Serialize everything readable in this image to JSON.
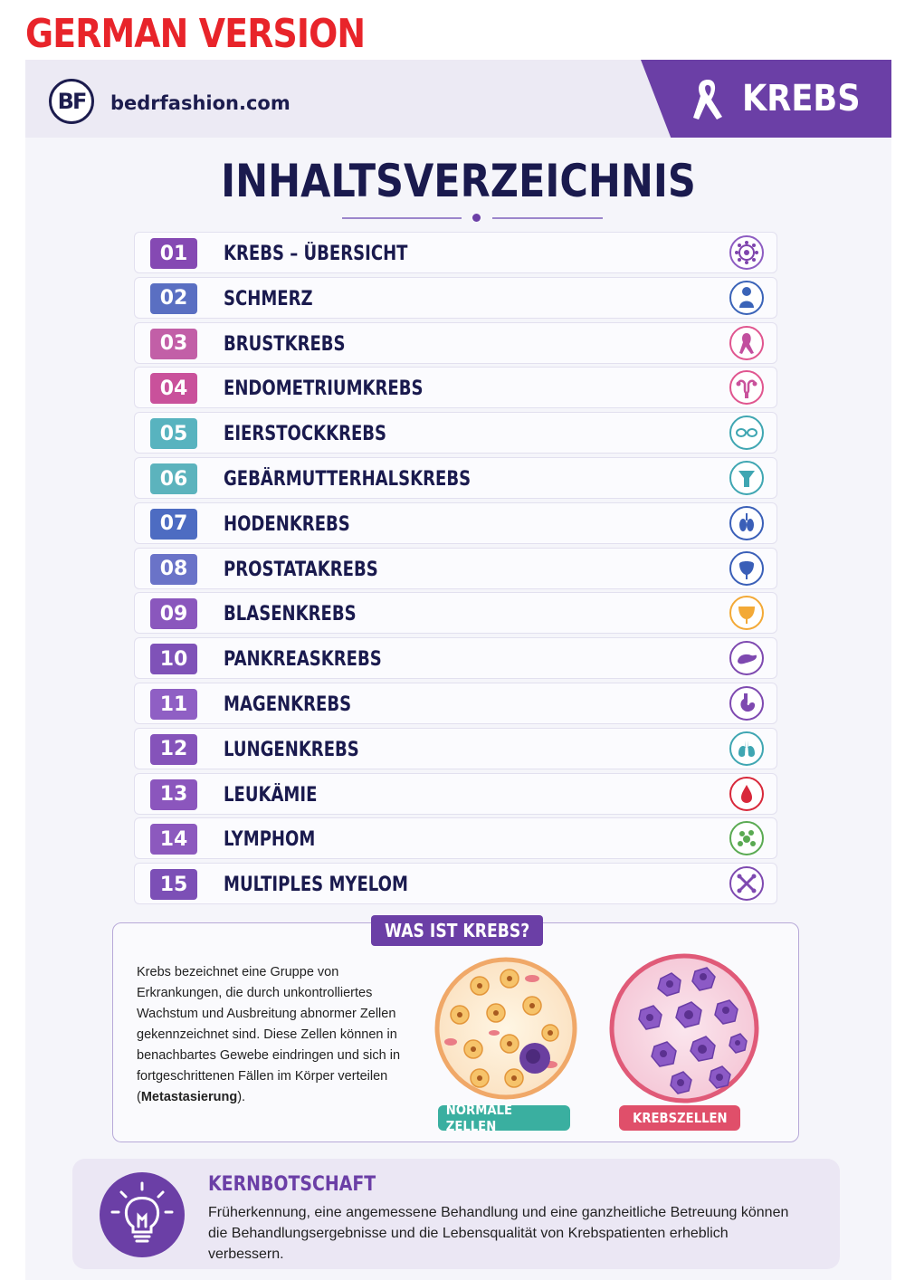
{
  "version_label": "GERMAN VERSION",
  "header": {
    "logo_text": "BF",
    "site": "bedrfashion.com",
    "tag": "KREBS"
  },
  "title": "INHALTSVERZEICHNIS",
  "colors": {
    "purple": "#6b3fa6",
    "navy": "#1a1a4e",
    "red_label": "#e8242a",
    "teal": "#3aafa0",
    "pink": "#e04f6a"
  },
  "toc": [
    {
      "num": "01",
      "label": "KREBS – ÜBERSICHT",
      "icon": "cell-icon",
      "color": "#7e44ad"
    },
    {
      "num": "02",
      "label": "SCHMERZ",
      "icon": "person-icon",
      "color": "#3a63b8"
    },
    {
      "num": "03",
      "label": "BRUSTKREBS",
      "icon": "ribbon-icon",
      "color": "#c24f9e"
    },
    {
      "num": "04",
      "label": "ENDOMETRIUMKREBS",
      "icon": "uterus-icon",
      "color": "#c9519b"
    },
    {
      "num": "05",
      "label": "EIERSTOCKKREBS",
      "icon": "ovaries-icon",
      "color": "#3fa6b2"
    },
    {
      "num": "06",
      "label": "GEBÄRMUTTERHALSKREBS",
      "icon": "cervix-icon",
      "color": "#3fa6b2"
    },
    {
      "num": "07",
      "label": "HODENKREBS",
      "icon": "testes-icon",
      "color": "#3a5fb8"
    },
    {
      "num": "08",
      "label": "PROSTATAKREBS",
      "icon": "prostate-icon",
      "color": "#3a5fb8"
    },
    {
      "num": "09",
      "label": "BLASENKREBS",
      "icon": "bladder-icon",
      "color": "#7e49b0"
    },
    {
      "num": "10",
      "label": "PANKREASKREBS",
      "icon": "pancreas-icon",
      "color": "#7e49b0"
    },
    {
      "num": "11",
      "label": "MAGENKREBS",
      "icon": "stomach-icon",
      "color": "#7e49b0"
    },
    {
      "num": "12",
      "label": "LUNGENKREBS",
      "icon": "lungs-icon",
      "color": "#7e49b0"
    },
    {
      "num": "13",
      "label": "LEUKÄMIE",
      "icon": "blood-drop-icon",
      "color": "#7e49b0"
    },
    {
      "num": "14",
      "label": "LYMPHOM",
      "icon": "lymph-cells-icon",
      "color": "#7e49b0"
    },
    {
      "num": "15",
      "label": "MULTIPLES MYELOM",
      "icon": "bones-icon",
      "color": "#7e49b0"
    }
  ],
  "what_is": {
    "title": "WAS IST KREBS?",
    "text_before": "Krebs bezeichnet eine Gruppe von Erkrankungen, die durch unkontrolliertes Wachstum und Ausbreitung abnormer Zellen gekennzeichnet sind. Diese Zellen können in benachbartes Gewebe eindringen und sich in fortgeschrittenen Fällen im Körper verteilen (",
    "text_bold": "Metastasierung",
    "text_after": ").",
    "normal_label": "NORMALE ZELLEN",
    "cancer_label": "KREBSZELLEN"
  },
  "key_message": {
    "title": "KERNBOTSCHAFT",
    "text": "Früherkennung, eine angemessene Behandlung und eine ganzheitliche Betreuung können die Behandlungsergebnisse und die Lebensqualität von Krebspatienten erheblich verbessern."
  }
}
